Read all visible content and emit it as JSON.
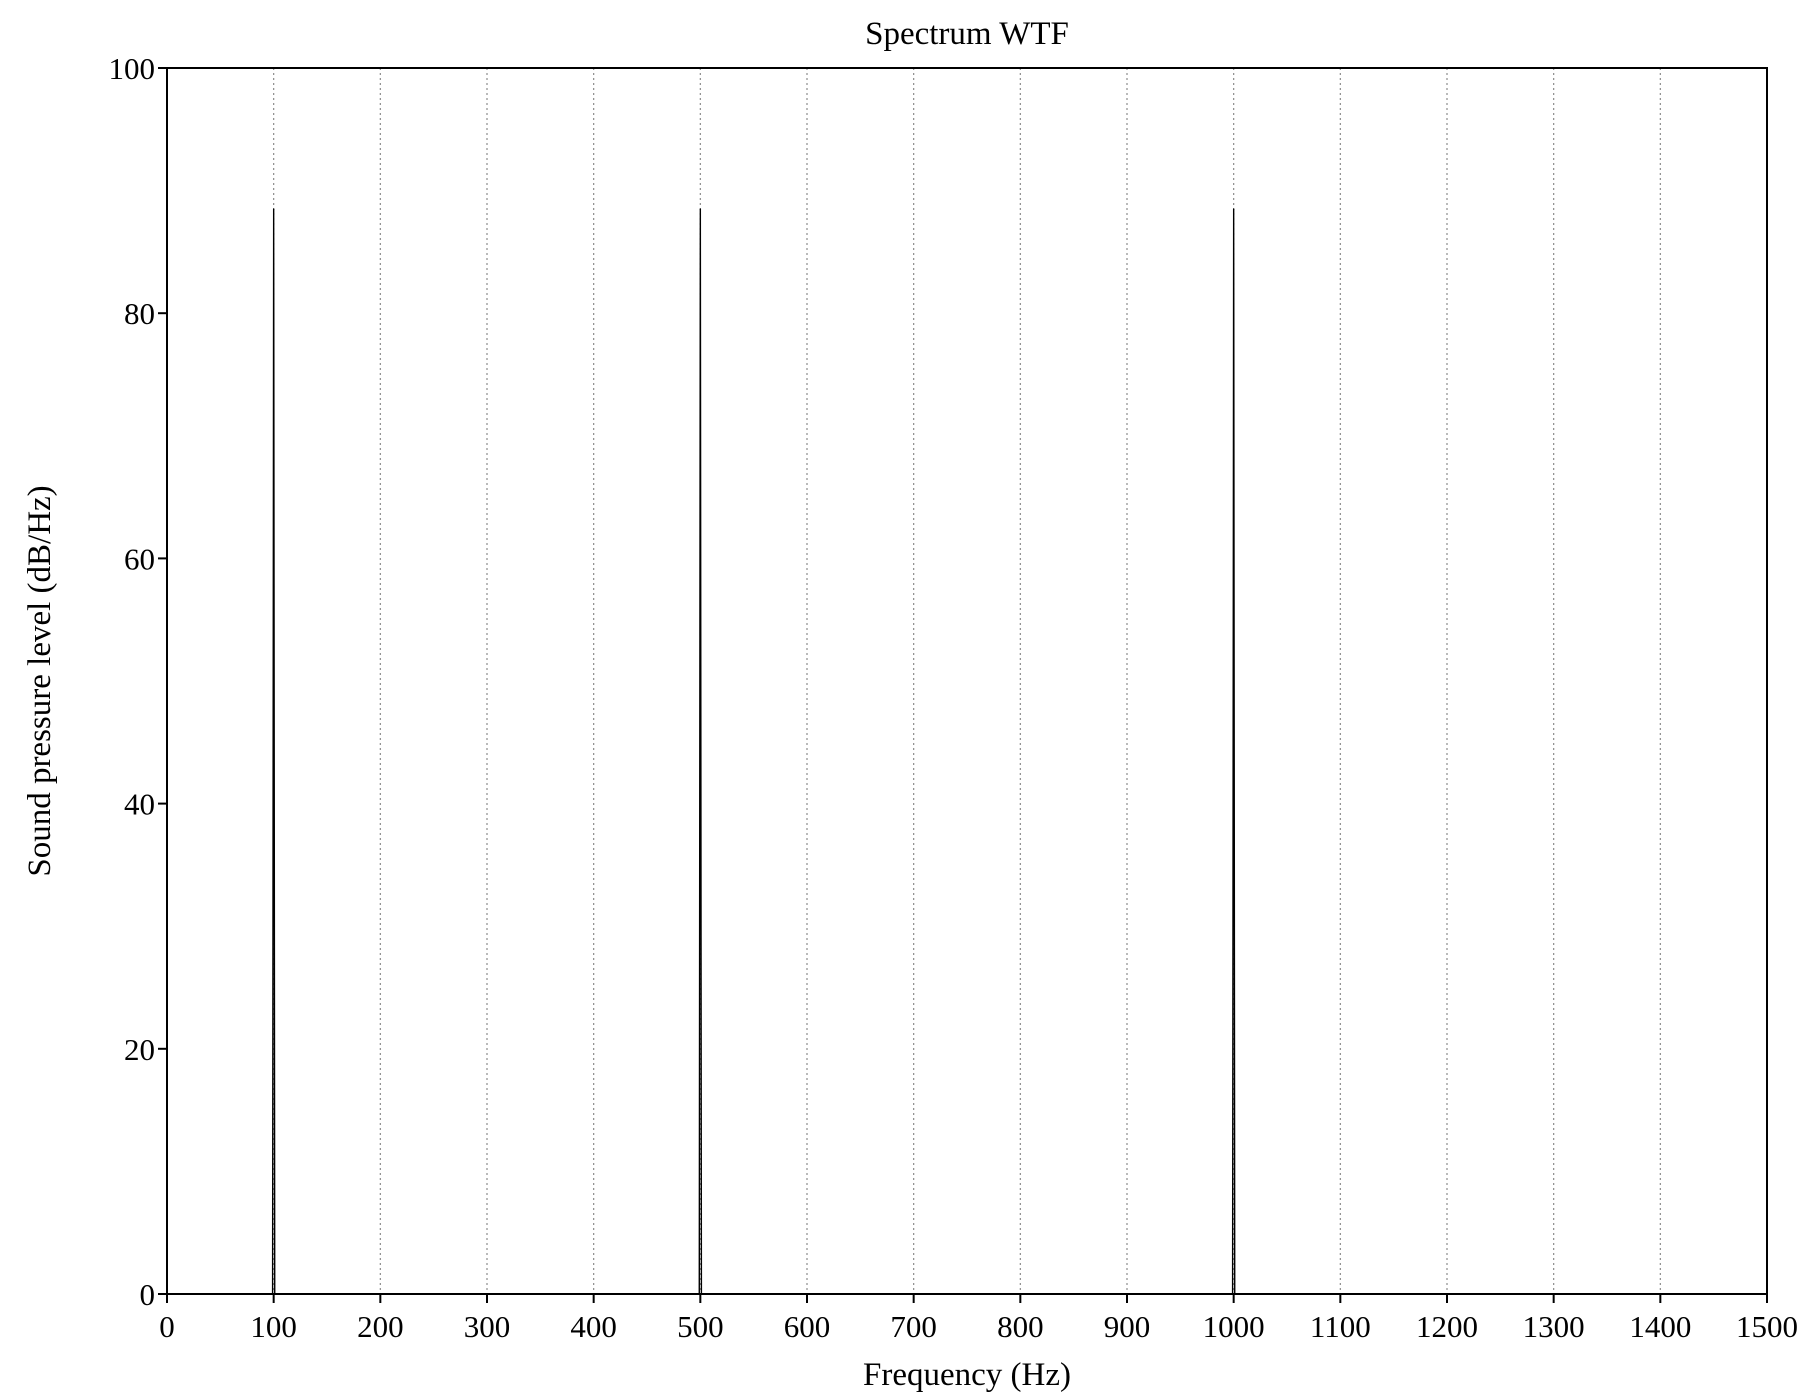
{
  "chart_data": {
    "type": "line",
    "title": "Spectrum WTF",
    "xlabel": "Frequency (Hz)",
    "ylabel": "Sound pressure level (dB/Hz)",
    "xlim": [
      0,
      1500
    ],
    "ylim": [
      0,
      100
    ],
    "xticks": [
      0,
      100,
      200,
      300,
      400,
      500,
      600,
      700,
      800,
      900,
      1000,
      1100,
      1200,
      1300,
      1400,
      1500
    ],
    "yticks": [
      0,
      20,
      40,
      60,
      80,
      100
    ],
    "grid": "vertical dotted",
    "series": [
      {
        "x": [
          0,
          99,
          100,
          101,
          499,
          500,
          501,
          999,
          1000,
          1001,
          1500
        ],
        "values": [
          0,
          0,
          88.5,
          0,
          0,
          88.5,
          0,
          0,
          88.5,
          0,
          0
        ]
      }
    ]
  },
  "colors": {
    "line": "#000000",
    "grid": "#8c8c8c",
    "axis": "#000000"
  }
}
